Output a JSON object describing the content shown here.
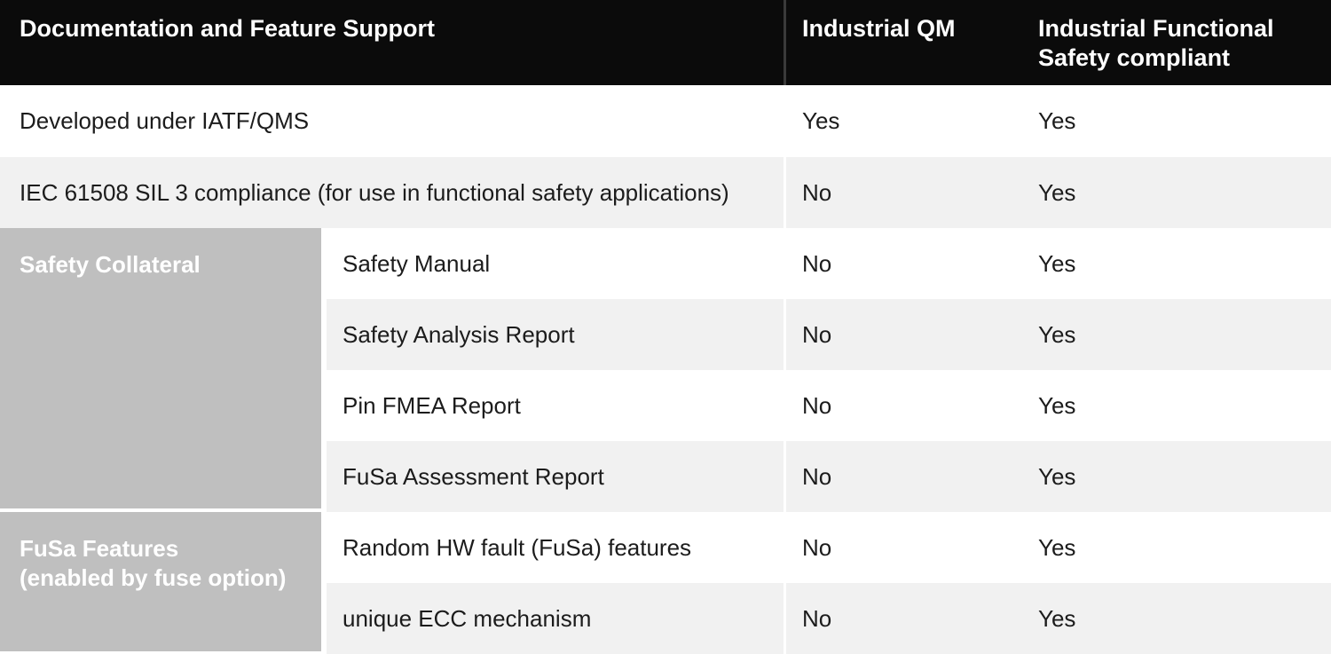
{
  "colors": {
    "header_bg": "#0b0b0b",
    "header_text": "#ffffff",
    "header_divider": "#3a3a3a",
    "row_bg": "#ffffff",
    "row_alt_bg": "#f1f1f1",
    "group_bg": "#bfbfbf",
    "group_text": "#ffffff",
    "body_text": "#1c1c1c"
  },
  "table": {
    "header": {
      "feature_col": "Documentation and Feature Support",
      "qm_col": "Industrial QM",
      "fusa_col": "Industrial Functional Safety compliant"
    },
    "groups": [
      {
        "line1": "Safety Collateral",
        "line2": ""
      },
      {
        "line1": "FuSa Features",
        "line2": "(enabled by fuse option)"
      }
    ],
    "rows": [
      {
        "feature": "Developed under IATF/QMS",
        "industrial_qm": "Yes",
        "industrial_fusa": "Yes"
      },
      {
        "feature": "IEC 61508 SIL 3 compliance (for use in functional safety applications)",
        "industrial_qm": "No",
        "industrial_fusa": "Yes"
      },
      {
        "feature": "Safety Manual",
        "industrial_qm": "No",
        "industrial_fusa": "Yes"
      },
      {
        "feature": "Safety Analysis Report",
        "industrial_qm": "No",
        "industrial_fusa": "Yes"
      },
      {
        "feature": "Pin FMEA Report",
        "industrial_qm": "No",
        "industrial_fusa": "Yes"
      },
      {
        "feature": "FuSa Assessment Report",
        "industrial_qm": "No",
        "industrial_fusa": "Yes"
      },
      {
        "feature": "Random HW fault (FuSa) features",
        "industrial_qm": "No",
        "industrial_fusa": "Yes"
      },
      {
        "feature": "unique ECC mechanism",
        "industrial_qm": "No",
        "industrial_fusa": "Yes"
      }
    ]
  }
}
